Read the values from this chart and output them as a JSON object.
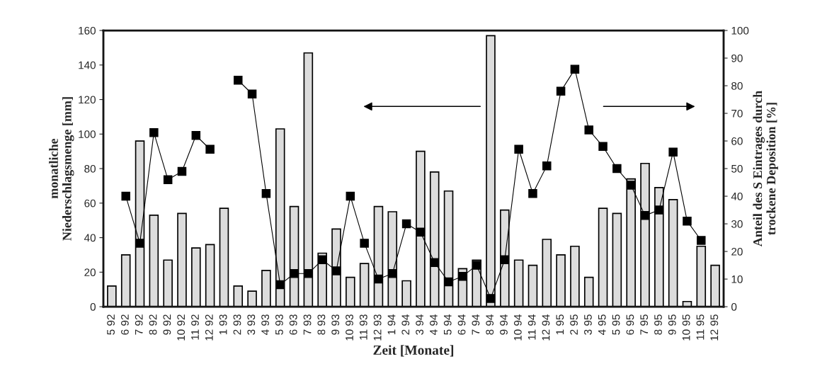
{
  "chart_data": {
    "type": "bar",
    "xlabel": "Zeit [Monate]",
    "ylabel": "monatliche\nNiederschlagsmenge [mm]",
    "y2label": "Anteil des S Eintrages durch\ntrockene Deposition [%]",
    "categories": [
      "5 92",
      "6 92",
      "7 92",
      "8 92",
      "9 92",
      "10 92",
      "11 92",
      "12 92",
      "1 93",
      "2 93",
      "3 93",
      "4 93",
      "5 93",
      "6 93",
      "7 93",
      "8 93",
      "9 93",
      "10 93",
      "11 93",
      "12 93",
      "1 94",
      "2 94",
      "3 94",
      "4 94",
      "5 94",
      "6 94",
      "7 94",
      "8 94",
      "9 94",
      "10 94",
      "11 94",
      "12 94",
      "1 95",
      "2 95",
      "3 95",
      "4 95",
      "5 95",
      "6 95",
      "7 95",
      "8 95",
      "9 95",
      "10 95",
      "11 95",
      "12 95"
    ],
    "series": [
      {
        "color": "#dcdcdc",
        "values": [
          12,
          30,
          96,
          53,
          27,
          54,
          34,
          36,
          57,
          12,
          9,
          21,
          103,
          58,
          147,
          31,
          45,
          17,
          25,
          58,
          55,
          15,
          90,
          78,
          67,
          22,
          27,
          157,
          56,
          27,
          24,
          39,
          30,
          35,
          17,
          57,
          54,
          74,
          83,
          69,
          62,
          3,
          35,
          24
        ]
      },
      {
        "type": "line",
        "axis": "y2",
        "color": "#000000",
        "marker": "square",
        "values": [
          null,
          40,
          23,
          63,
          46,
          49,
          62,
          57,
          null,
          82,
          77,
          41,
          8,
          12,
          12,
          17,
          13,
          40,
          23,
          10,
          12,
          30,
          27,
          16,
          9,
          11,
          15,
          3,
          17,
          57,
          41,
          51,
          78,
          86,
          64,
          58,
          50,
          44,
          33,
          35,
          56,
          31,
          24,
          null
        ]
      }
    ],
    "ylim": [
      0,
      160
    ],
    "yticks": [
      0,
      20,
      40,
      60,
      80,
      100,
      120,
      140,
      160
    ],
    "y2lim": [
      0,
      100
    ],
    "y2ticks": [
      0,
      10,
      20,
      30,
      40,
      50,
      60,
      70,
      80,
      90,
      100
    ],
    "grid": false,
    "legend": false
  }
}
